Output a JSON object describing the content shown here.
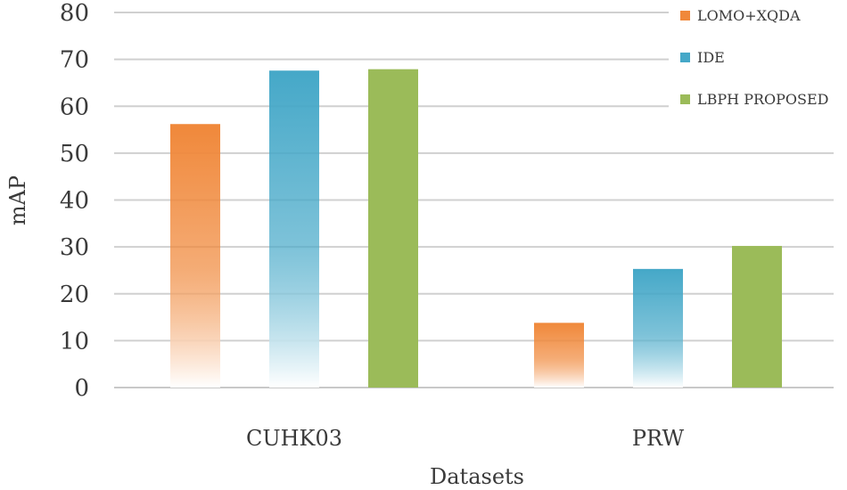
{
  "chart_data": {
    "type": "bar",
    "title": "",
    "xlabel": "Datasets",
    "ylabel": "mAP",
    "ylim": [
      0,
      80
    ],
    "yticks": [
      0,
      10,
      20,
      30,
      40,
      50,
      60,
      70,
      80
    ],
    "grid": true,
    "legend_position": "top-right",
    "categories": [
      "CUHK03",
      "PRW"
    ],
    "series": [
      {
        "name": "LOMO+XQDA",
        "values": [
          56.2,
          13.8
        ],
        "color": "#f0883a"
      },
      {
        "name": "IDE",
        "values": [
          67.6,
          25.3
        ],
        "color": "#45a8c8"
      },
      {
        "name": "LBPH PROPOSED",
        "values": [
          67.9,
          30.2
        ],
        "color": "#9bbb59"
      }
    ]
  }
}
